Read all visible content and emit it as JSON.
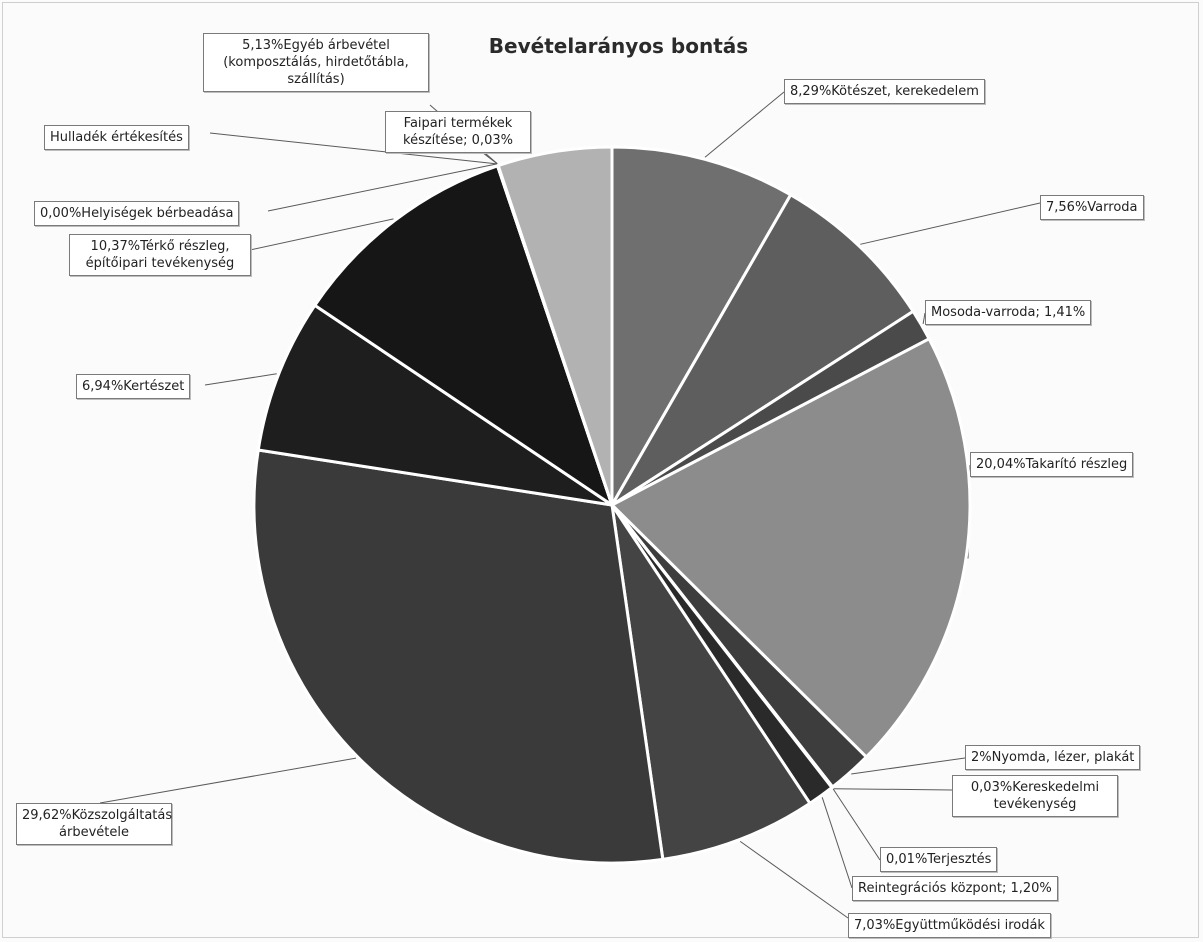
{
  "chart_data": {
    "type": "pie",
    "title": "Bevételarányos bontás",
    "slices": [
      {
        "label": "8,29%Kötészet, kerekedelem",
        "value": 8.29,
        "color": "#6f6f6f"
      },
      {
        "label": "7,56%Varroda",
        "value": 7.56,
        "color": "#5e5e5e"
      },
      {
        "label": "Mosoda-varroda; 1,41%",
        "value": 1.41,
        "color": "#4a4a4a"
      },
      {
        "label": "20,04%Takarító részleg",
        "value": 20.04,
        "color": "#8c8c8c"
      },
      {
        "label": "2%Nyomda, lézer, plakát",
        "value": 2.0,
        "color": "#3d3d3d"
      },
      {
        "label": "0,03%Kereskedelmi tevékenység",
        "value": 0.03,
        "color": "#333333"
      },
      {
        "label": "0,01%Terjesztés",
        "value": 0.01,
        "color": "#333333"
      },
      {
        "label": "Reintegrációs központ; 1,20%",
        "value": 1.2,
        "color": "#2a2a2a"
      },
      {
        "label": "7,03%Együttműködési irodák",
        "value": 7.03,
        "color": "#444444"
      },
      {
        "label": "29,62%Közszolgáltatás árbevétele",
        "value": 29.62,
        "color": "#3a3a3a"
      },
      {
        "label": "6,94%Kertészet",
        "value": 6.94,
        "color": "#1e1e1e"
      },
      {
        "label": "10,37%Térkő részleg, építőipari tevékenység",
        "value": 10.37,
        "color": "#161616"
      },
      {
        "label": "0,00%Helyiségek bérbeadása",
        "value": 0.0,
        "color": "#222222"
      },
      {
        "label": "Hulladék értékesítés",
        "value": 0.0,
        "color": "#222222"
      },
      {
        "label": "Faipari termékek készítése; 0,03%",
        "value": 0.03,
        "color": "#777777"
      },
      {
        "label": "5,13%Egyéb árbevétel (komposztálás, hirdetőtábla, szállítás)",
        "value": 5.13,
        "color": "#b2b2b2"
      }
    ],
    "legend": "none",
    "label_texts": {
      "kotes": "8,29%Kötészet, kerekedelem",
      "varroda": "7,56%Varroda",
      "mosoda": "Mosoda-varroda; 1,41%",
      "takarito": "20,04%Takarító részleg",
      "nyomda": "2%Nyomda, lézer, plakát",
      "keresk": "0,03%Kereskedelmi tevékenység",
      "terjesztes": "0,01%Terjesztés",
      "reintegr": "Reintegrációs központ; 1,20%",
      "egyuttm": "7,03%Együttműködési irodák",
      "kozszolg": "29,62%Közszolgáltatás árbevétele",
      "kerteszet": "6,94%Kertészet",
      "terko": "10,37%Térkő részleg, építőipari tevékenység",
      "helyiseg": "0,00%Helyiségek bérbeadása",
      "hulladek": "Hulladék értékesítés",
      "faipari": "Faipari termékek készítése; 0,03%",
      "egyeb": "5,13%Egyéb árbevétel (komposztálás, hirdetőtábla, szállítás)"
    }
  }
}
